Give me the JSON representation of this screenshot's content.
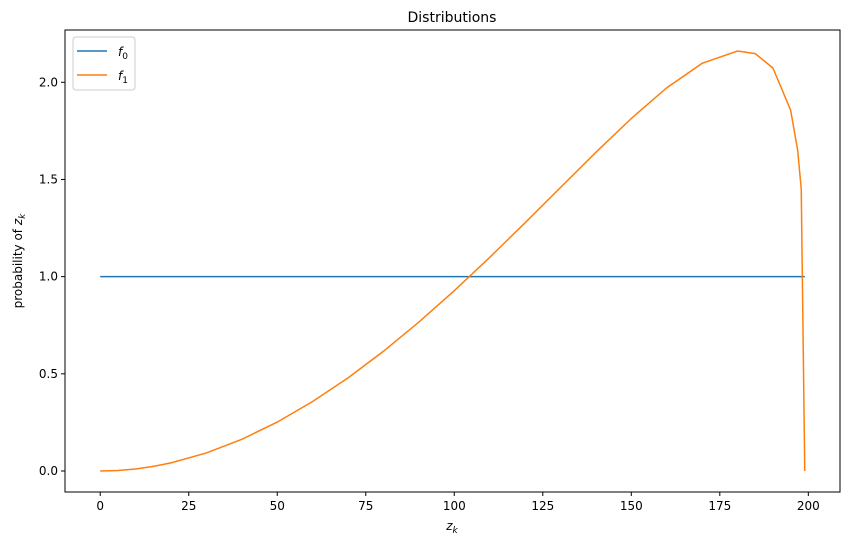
{
  "chart_data": {
    "type": "line",
    "title": "Distributions",
    "xlabel": "z_k",
    "ylabel": "probability of z_k",
    "xlim": [
      -9.95,
      208.95
    ],
    "ylim": [
      -0.108,
      2.269
    ],
    "xticks": [
      0,
      25,
      50,
      75,
      100,
      125,
      150,
      175,
      200
    ],
    "xtick_labels": [
      "0",
      "25",
      "50",
      "75",
      "100",
      "125",
      "150",
      "175",
      "200"
    ],
    "yticks": [
      0,
      0.5,
      1,
      1.5,
      2
    ],
    "ytick_labels": [
      "0.0",
      "0.5",
      "1.0",
      "1.5",
      "2.0"
    ],
    "grid": false,
    "legend_position": "upper-left",
    "series": [
      {
        "name": "f_0",
        "color": "#1f77b4",
        "x": [
          0,
          199
        ],
        "y": [
          1.0,
          1.0
        ]
      },
      {
        "name": "f_1",
        "color": "#ff7f0e",
        "x": [
          0,
          5,
          10,
          15,
          20,
          30,
          40,
          50,
          60,
          70,
          80,
          90,
          100,
          110,
          120,
          130,
          140,
          150,
          160,
          170,
          180,
          185,
          190,
          195,
          197,
          198,
          199
        ],
        "y": [
          0,
          0.0027,
          0.0106,
          0.0236,
          0.0418,
          0.0929,
          0.1632,
          0.2517,
          0.3575,
          0.4794,
          0.616,
          0.7661,
          0.9278,
          1.099,
          1.2771,
          1.4588,
          1.6397,
          1.8136,
          1.9713,
          2.0975,
          2.1609,
          2.1474,
          2.0735,
          1.857,
          1.6499,
          1.4509,
          0
        ]
      }
    ]
  }
}
